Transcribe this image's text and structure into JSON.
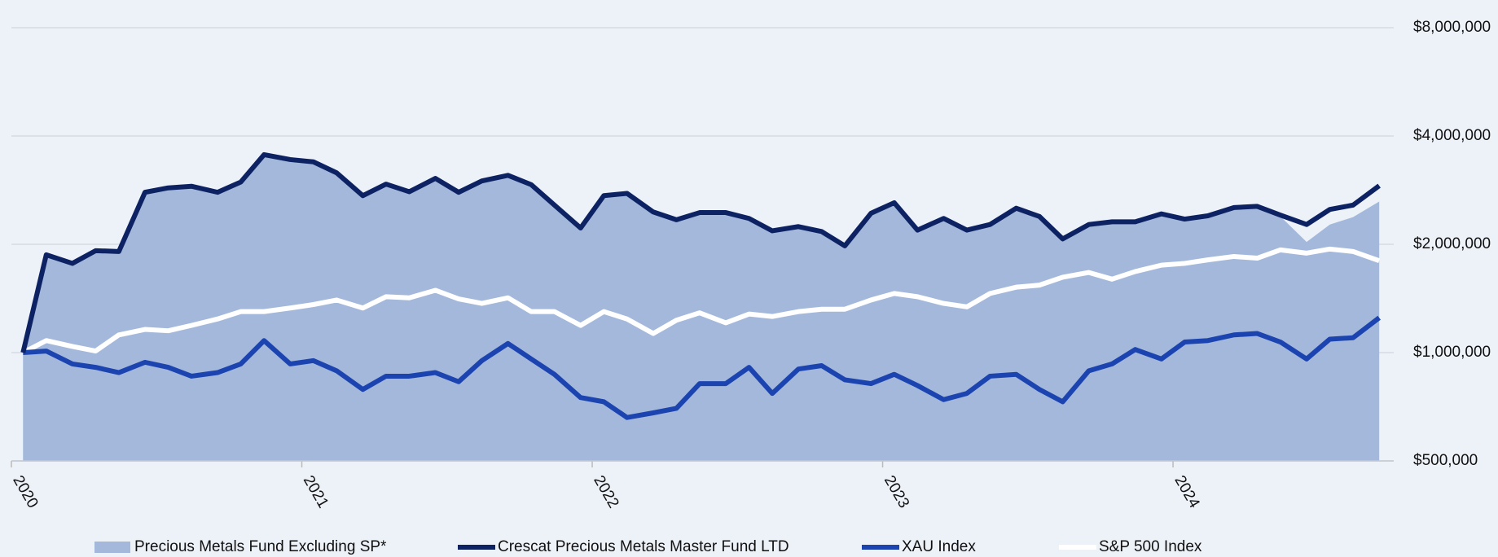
{
  "chart_data": {
    "type": "line",
    "log_y": true,
    "grid": true,
    "legend": "bottom",
    "x": [
      2020.04,
      2020.12,
      2020.21,
      2020.29,
      2020.37,
      2020.46,
      2020.54,
      2020.62,
      2020.71,
      2020.79,
      2020.87,
      2020.96,
      2021.04,
      2021.12,
      2021.21,
      2021.29,
      2021.37,
      2021.46,
      2021.54,
      2021.62,
      2021.71,
      2021.79,
      2021.87,
      2021.96,
      2022.04,
      2022.12,
      2022.21,
      2022.29,
      2022.37,
      2022.46,
      2022.54,
      2022.62,
      2022.71,
      2022.79,
      2022.87,
      2022.96,
      2023.04,
      2023.12,
      2023.21,
      2023.29,
      2023.37,
      2023.46,
      2023.54,
      2023.62,
      2023.71,
      2023.79,
      2023.87,
      2023.96,
      2024.04,
      2024.12,
      2024.21,
      2024.29,
      2024.37,
      2024.46,
      2024.54,
      2024.62,
      2024.71
    ],
    "xlim": [
      2020,
      2024.76
    ],
    "xticks": [
      2020,
      2021,
      2022,
      2023,
      2024
    ],
    "ylim": [
      500000,
      8000000
    ],
    "yticks": [
      {
        "value": 500000,
        "label": "$500,000"
      },
      {
        "value": 1000000,
        "label": "$1,000,000"
      },
      {
        "value": 2000000,
        "label": "$2,000,000"
      },
      {
        "value": 4000000,
        "label": "$4,000,000"
      },
      {
        "value": 8000000,
        "label": "$8,000,000"
      }
    ],
    "series": [
      {
        "name": "Precious Metals Fund Excluding SP*",
        "type": "area",
        "color": "#a3b8db",
        "values": [
          1000000,
          1870000,
          1770000,
          1920000,
          1910000,
          2790000,
          2870000,
          2900000,
          2790000,
          2980000,
          3550000,
          3440000,
          3390000,
          3160000,
          2730000,
          2940000,
          2800000,
          3050000,
          2790000,
          3000000,
          3110000,
          2930000,
          2570000,
          2220000,
          2730000,
          2770000,
          2460000,
          2340000,
          2450000,
          2450000,
          2360000,
          2180000,
          2240000,
          2170000,
          1980000,
          2440000,
          2610000,
          2190000,
          2360000,
          2190000,
          2270000,
          2520000,
          2390000,
          2070000,
          2270000,
          2310000,
          2310000,
          2430000,
          2350000,
          2400000,
          2510000,
          2530000,
          2390000,
          2030000,
          2270000,
          2380000,
          2630000
        ]
      },
      {
        "name": "Crescat Precious Metals Master Fund LTD",
        "type": "line",
        "color": "#0d2263",
        "values": [
          1000000,
          1870000,
          1770000,
          1920000,
          1910000,
          2790000,
          2870000,
          2900000,
          2790000,
          2980000,
          3550000,
          3440000,
          3390000,
          3160000,
          2730000,
          2940000,
          2800000,
          3050000,
          2790000,
          3000000,
          3110000,
          2930000,
          2570000,
          2220000,
          2730000,
          2770000,
          2460000,
          2340000,
          2450000,
          2450000,
          2360000,
          2180000,
          2240000,
          2170000,
          1980000,
          2440000,
          2610000,
          2190000,
          2360000,
          2190000,
          2270000,
          2520000,
          2390000,
          2070000,
          2270000,
          2310000,
          2310000,
          2430000,
          2350000,
          2400000,
          2530000,
          2550000,
          2410000,
          2270000,
          2500000,
          2570000,
          2910000
        ]
      },
      {
        "name": "XAU Index",
        "type": "line",
        "color": "#1c44b0",
        "values": [
          1000000,
          1010000,
          930000,
          910000,
          880000,
          940000,
          910000,
          860000,
          880000,
          930000,
          1080000,
          930000,
          950000,
          890000,
          790000,
          860000,
          860000,
          880000,
          830000,
          950000,
          1060000,
          960000,
          870000,
          750000,
          730000,
          660000,
          680000,
          700000,
          820000,
          820000,
          910000,
          770000,
          900000,
          920000,
          840000,
          820000,
          870000,
          810000,
          740000,
          770000,
          860000,
          870000,
          790000,
          730000,
          890000,
          930000,
          1020000,
          960000,
          1070000,
          1080000,
          1120000,
          1130000,
          1070000,
          960000,
          1090000,
          1100000,
          1250000
        ]
      },
      {
        "name": "S&P 500 Index",
        "type": "line",
        "color": "#ffffff",
        "values": [
          1000000,
          1080000,
          1040000,
          1010000,
          1120000,
          1160000,
          1150000,
          1190000,
          1240000,
          1300000,
          1300000,
          1330000,
          1360000,
          1400000,
          1330000,
          1430000,
          1420000,
          1490000,
          1410000,
          1370000,
          1420000,
          1300000,
          1300000,
          1190000,
          1300000,
          1240000,
          1130000,
          1230000,
          1290000,
          1210000,
          1280000,
          1260000,
          1300000,
          1320000,
          1320000,
          1400000,
          1460000,
          1430000,
          1370000,
          1340000,
          1460000,
          1520000,
          1540000,
          1620000,
          1670000,
          1600000,
          1680000,
          1750000,
          1770000,
          1810000,
          1850000,
          1830000,
          1930000,
          1890000,
          1940000,
          1910000,
          1800000
        ]
      }
    ]
  }
}
